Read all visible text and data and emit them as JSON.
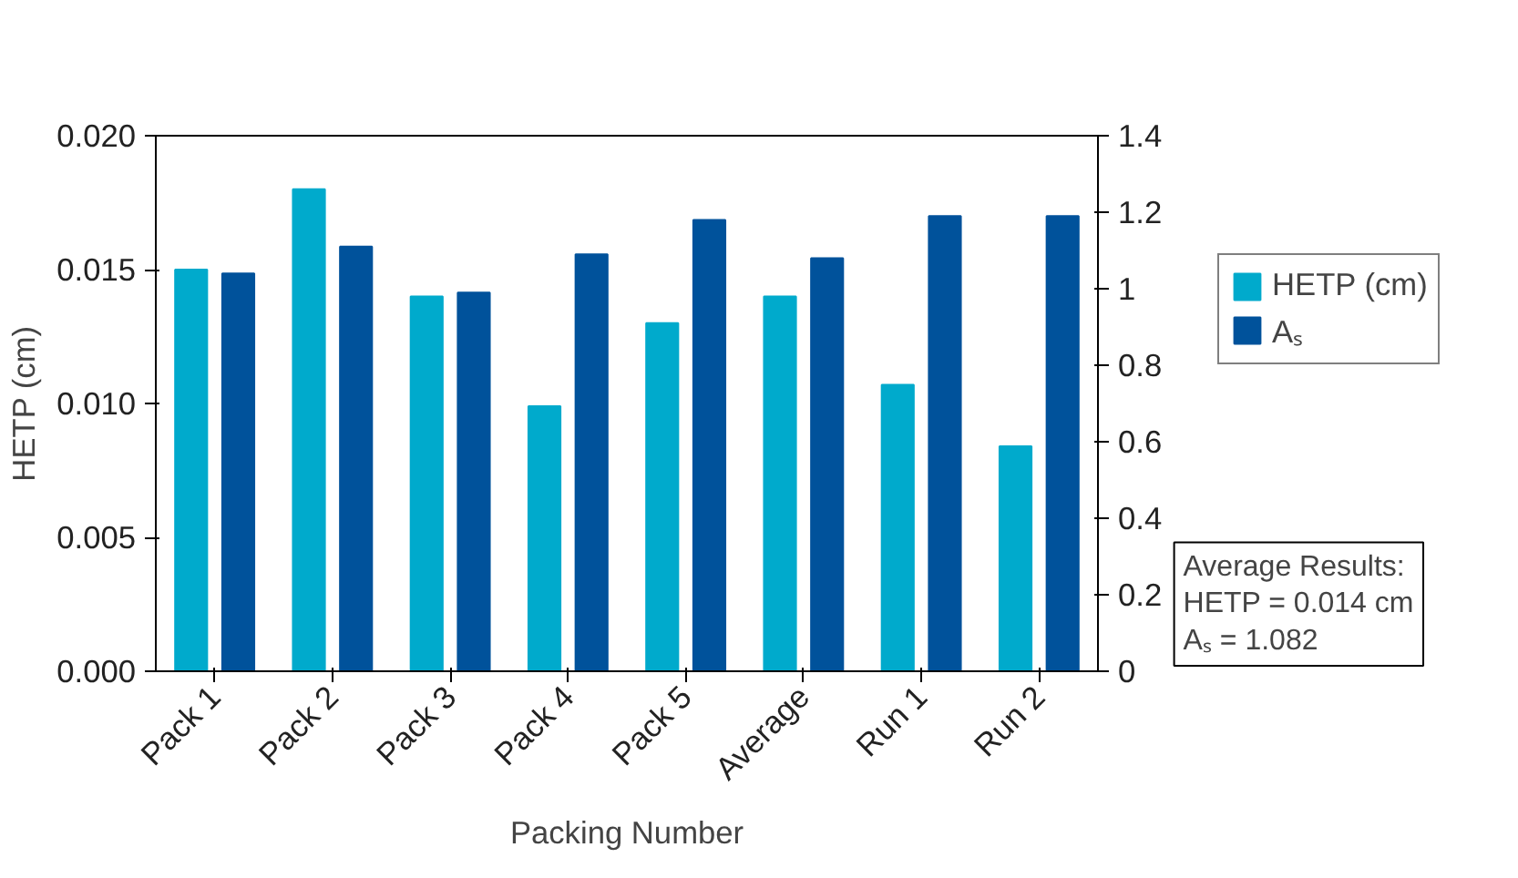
{
  "chart_data": {
    "type": "bar",
    "xlabel": "Packing Number",
    "ylabel": "HETP (cm)",
    "categories": [
      "Pack 1",
      "Pack 2",
      "Pack 3",
      "Pack 4",
      "Pack 5",
      "Average",
      "Run 1",
      "Run 2"
    ],
    "series": [
      {
        "name": "HETP (cm)",
        "color": "#00aacc",
        "values": [
          0.015,
          0.018,
          0.014,
          0.0099,
          0.013,
          0.014,
          0.0107,
          0.0084
        ]
      },
      {
        "name": "Aₛ",
        "color": "#00529b",
        "axis": "y2",
        "values": [
          1.04,
          1.11,
          0.99,
          1.09,
          1.18,
          1.08,
          1.19,
          1.19
        ]
      }
    ],
    "ylim": [
      0,
      0.02
    ],
    "yticks": [
      {
        "value": 0,
        "label": "0.000"
      },
      {
        "value": 0.005,
        "label": "0.005"
      },
      {
        "value": 0.01,
        "label": "0.010"
      },
      {
        "value": 0.015,
        "label": "0.015"
      },
      {
        "value": 0.02,
        "label": "0.020"
      }
    ],
    "y2lim": [
      0,
      1.4
    ],
    "y2ticks": [
      0,
      0.2,
      0.4,
      0.6,
      0.8,
      1,
      1.2,
      1.4
    ],
    "grid": false,
    "legend": "right",
    "annotations": [
      "Average Results:\nHETP = 0.014 cm\nAₛ       = 1.082"
    ]
  }
}
